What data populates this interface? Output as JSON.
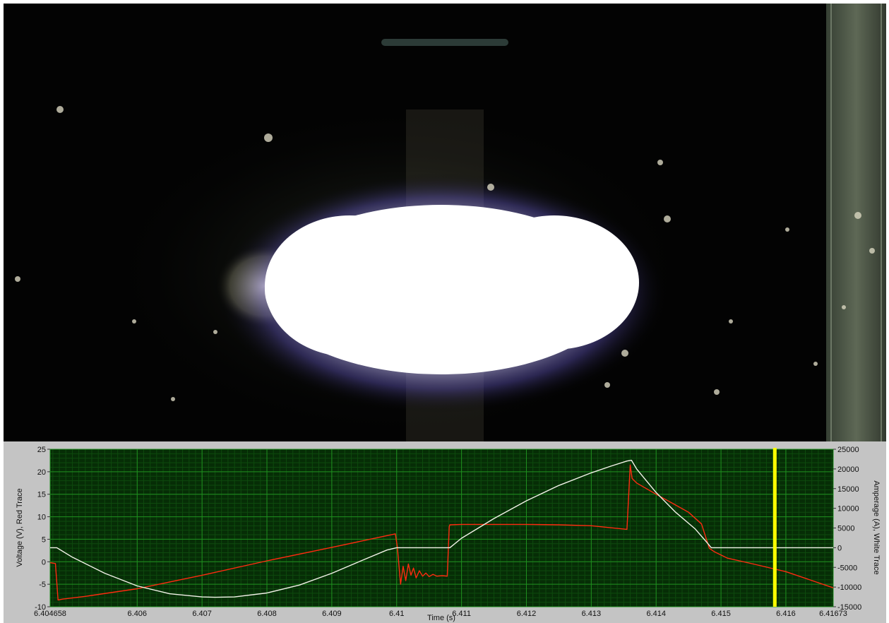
{
  "video": {
    "description_icon": "welding-arc-frame"
  },
  "chart_data": {
    "type": "line",
    "xlabel": "Time (s)",
    "ylabel_left": "Voltage (V), Red Trace",
    "ylabel_right": "Amperage (A), White Trace",
    "xlim": [
      6.404658,
      6.41673
    ],
    "ylim_left": [
      -10,
      25
    ],
    "ylim_right": [
      -15000,
      25000
    ],
    "x_ticks": [
      {
        "v": 6.404658,
        "label": "6.404658"
      },
      {
        "v": 6.406,
        "label": "6.406"
      },
      {
        "v": 6.407,
        "label": "6.407"
      },
      {
        "v": 6.408,
        "label": "6.408"
      },
      {
        "v": 6.409,
        "label": "6.409"
      },
      {
        "v": 6.41,
        "label": "6.41"
      },
      {
        "v": 6.411,
        "label": "6.411"
      },
      {
        "v": 6.412,
        "label": "6.412"
      },
      {
        "v": 6.413,
        "label": "6.413"
      },
      {
        "v": 6.414,
        "label": "6.414"
      },
      {
        "v": 6.415,
        "label": "6.415"
      },
      {
        "v": 6.416,
        "label": "6.416"
      },
      {
        "v": 6.41673,
        "label": "6.41673"
      }
    ],
    "y_ticks_left": [
      "25",
      "20",
      "15",
      "10",
      "5",
      "0",
      "-5",
      "-10"
    ],
    "y_ticks_right": [
      "25000",
      "20000",
      "15000",
      "10000",
      "5000",
      "0",
      "-5000",
      "-10000",
      "-15000"
    ],
    "cursor_x": 6.41583,
    "grid": true,
    "colors": {
      "background": "#062d06",
      "grid_major": "#1f8f1f",
      "grid_minor": "#0e4a0e",
      "voltage": "#ff2a10",
      "current": "#f2f2e8",
      "cursor": "#ffff00"
    },
    "series": [
      {
        "name": "Red Trace",
        "axis": "left",
        "x": [
          6.404658,
          6.40474,
          6.40478,
          6.40485,
          6.4052,
          6.406,
          6.407,
          6.408,
          6.409,
          6.40998,
          6.41001,
          6.41006,
          6.4101,
          6.41014,
          6.41018,
          6.41022,
          6.41026,
          6.4103,
          6.41035,
          6.4104,
          6.41045,
          6.4105,
          6.41056,
          6.41062,
          6.4107,
          6.41078,
          6.41081,
          6.41082,
          6.411,
          6.4115,
          6.412,
          6.4125,
          6.413,
          6.41355,
          6.4136,
          6.41363,
          6.4137,
          6.414,
          6.4143,
          6.4145,
          6.4147,
          6.41482,
          6.4149,
          6.4151,
          6.4155,
          6.416,
          6.41673
        ],
        "y": [
          -0.2,
          -0.4,
          -8.5,
          -8.3,
          -7.7,
          -6.0,
          -3.0,
          0.2,
          3.2,
          6.2,
          3.3,
          -5.0,
          -1.0,
          -4.2,
          -0.5,
          -3.0,
          -1.4,
          -3.6,
          -2.0,
          -3.2,
          -2.5,
          -3.3,
          -2.8,
          -3.2,
          -3.1,
          -3.2,
          7.8,
          8.2,
          8.3,
          8.3,
          8.3,
          8.2,
          8.0,
          7.2,
          21.5,
          18.5,
          17.5,
          15.0,
          12.6,
          11.0,
          8.4,
          3.0,
          2.2,
          0.8,
          -0.5,
          -2.2,
          -5.8
        ]
      },
      {
        "name": "White Trace",
        "axis": "right",
        "x": [
          6.404658,
          6.40476,
          6.405,
          6.4055,
          6.406,
          6.4065,
          6.407,
          6.4072,
          6.4075,
          6.408,
          6.4085,
          6.409,
          6.4095,
          6.40985,
          6.41,
          6.41005,
          6.4105,
          6.41078,
          6.41082,
          6.411,
          6.4115,
          6.412,
          6.4125,
          6.413,
          6.4133,
          6.41355,
          6.41362,
          6.4137,
          6.414,
          6.4143,
          6.4146,
          6.4148,
          6.41485,
          6.415,
          6.4158,
          6.41673
        ],
        "y": [
          0,
          0,
          -2400,
          -6500,
          -9700,
          -11700,
          -12500,
          -12600,
          -12500,
          -11500,
          -9500,
          -6500,
          -3000,
          -600,
          0,
          0,
          0,
          0,
          0,
          2400,
          7400,
          11900,
          15800,
          19000,
          20700,
          22000,
          22200,
          20000,
          14000,
          9000,
          4800,
          1000,
          0,
          0,
          0,
          0
        ]
      }
    ]
  }
}
